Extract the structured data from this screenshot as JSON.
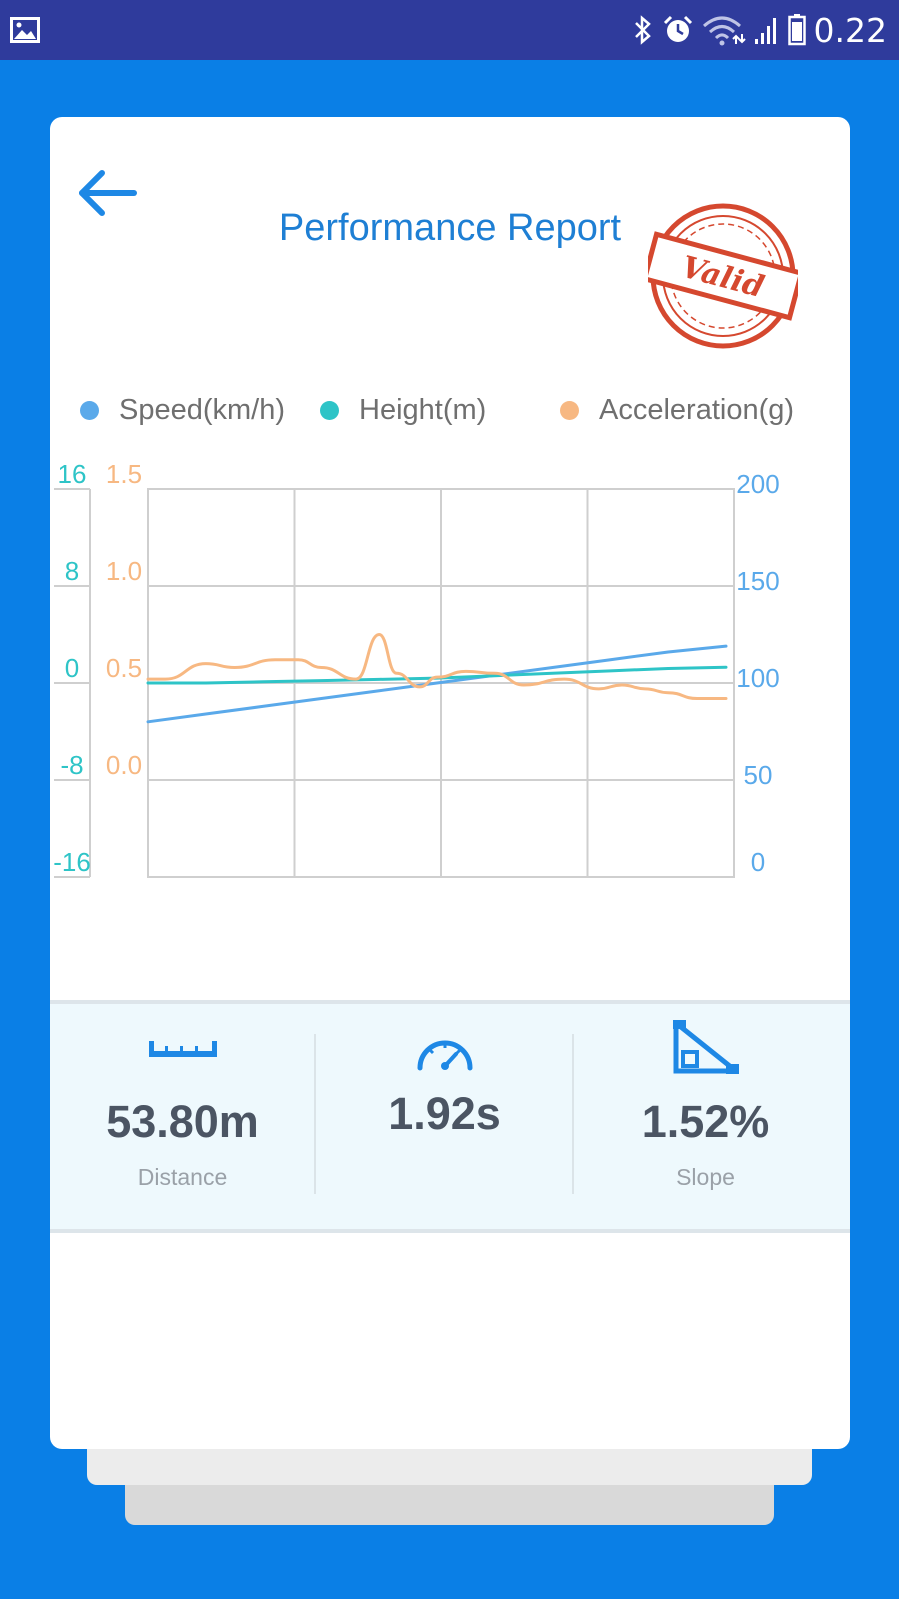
{
  "status_bar": {
    "time": "0.22"
  },
  "header": {
    "title": "Performance Report",
    "stamp_text": "Valid"
  },
  "legend": [
    {
      "label": "Speed(km/h)",
      "color": "#5aa9ea"
    },
    {
      "label": "Height(m)",
      "color": "#2ec4c7"
    },
    {
      "label": "Acceleration(g)",
      "color": "#f7b882"
    }
  ],
  "chart_data": {
    "type": "line",
    "grid": true,
    "legend_position": "top",
    "axes": {
      "height_axis": {
        "ticks": [
          "16",
          "8",
          "0",
          "-8",
          "-16"
        ],
        "range": [
          -16,
          16
        ],
        "color": "#2ec4c7"
      },
      "acceleration_axis": {
        "ticks": [
          "1.5",
          "1.0",
          "0.5",
          "0.0"
        ],
        "range": [
          0.0,
          1.5
        ],
        "color": "#f7b882"
      },
      "speed_axis": {
        "ticks": [
          "200",
          "150",
          "100",
          "50",
          "0"
        ],
        "range": [
          0,
          200
        ],
        "color": "#5aa9ea"
      }
    },
    "x": [
      0,
      0.1,
      0.2,
      0.3,
      0.4,
      0.5,
      0.6,
      0.7,
      0.8,
      0.9,
      1.0
    ],
    "series": [
      {
        "name": "Speed(km/h)",
        "axis": "speed_axis",
        "color": "#5aa9ea",
        "values": [
          80,
          84,
          88,
          92,
          96,
          100,
          104,
          108,
          112,
          116,
          119
        ]
      },
      {
        "name": "Height(m)",
        "axis": "height_axis",
        "color": "#2ec4c7",
        "values": [
          0.0,
          0.0,
          0.1,
          0.2,
          0.3,
          0.4,
          0.6,
          0.8,
          1.0,
          1.2,
          1.3
        ]
      },
      {
        "name": "Acceleration(g)",
        "axis": "acceleration_axis",
        "color": "#f7b882",
        "x": [
          0,
          0.03,
          0.1,
          0.15,
          0.22,
          0.26,
          0.3,
          0.36,
          0.4,
          0.43,
          0.47,
          0.5,
          0.55,
          0.6,
          0.65,
          0.72,
          0.78,
          0.82,
          0.86,
          0.9,
          0.95,
          1.0
        ],
        "values": [
          0.52,
          0.52,
          0.6,
          0.58,
          0.62,
          0.62,
          0.58,
          0.52,
          0.75,
          0.55,
          0.48,
          0.53,
          0.56,
          0.55,
          0.49,
          0.52,
          0.47,
          0.49,
          0.47,
          0.45,
          0.42,
          0.42
        ]
      }
    ]
  },
  "stats": [
    {
      "icon": "ruler-icon",
      "value": "53.80m",
      "label": "Distance"
    },
    {
      "icon": "speedometer-icon",
      "value": "1.92s",
      "label": ""
    },
    {
      "icon": "slope-icon",
      "value": "1.52%",
      "label": "Slope"
    }
  ]
}
